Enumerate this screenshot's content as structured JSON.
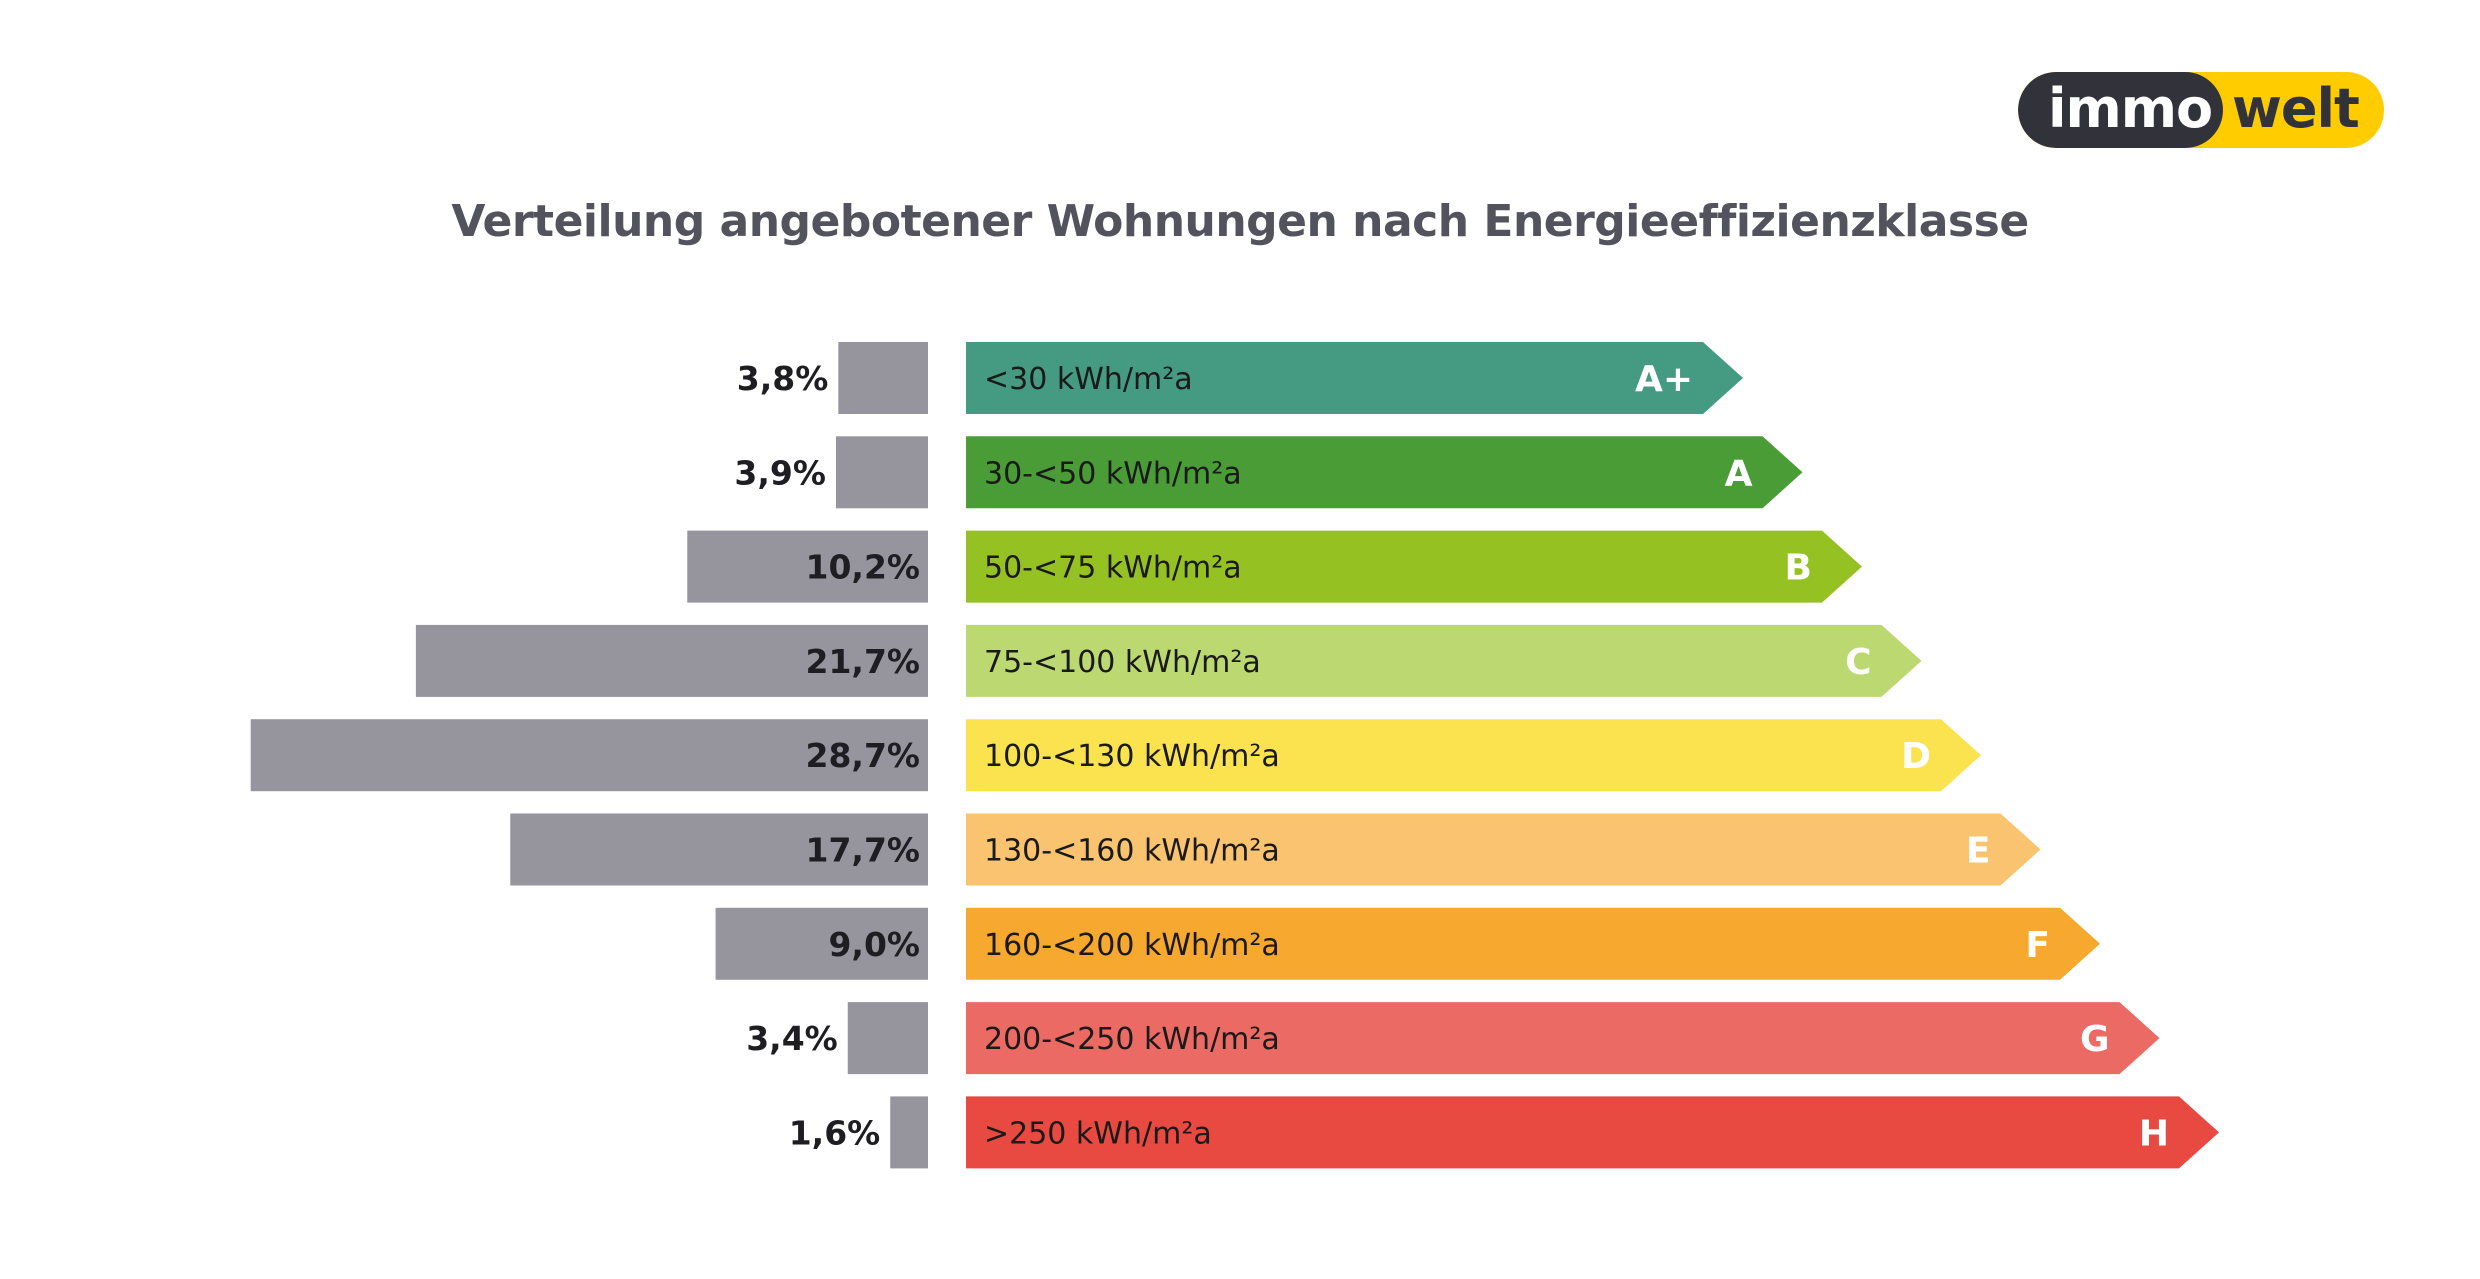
{
  "logo": {
    "part1": "immo",
    "part2": "welt",
    "dark_color": "#32333a",
    "accent_color": "#ffcc00"
  },
  "chart_data": {
    "type": "bar",
    "title": "Verteilung angebotener Wohnungen nach Energieeffizienzklasse",
    "xlabel": "",
    "ylabel": "",
    "unit": "%",
    "bar_color": "#96959e",
    "categories": [
      "A+",
      "A",
      "B",
      "C",
      "D",
      "E",
      "F",
      "G",
      "H"
    ],
    "ranges": [
      "<30 kWh/m²a",
      "30-<50 kWh/m²a",
      "50-<75 kWh/m²a",
      "75-<100 kWh/m²a",
      "100-<130 kWh/m²a",
      "130-<160 kWh/m²a",
      "160-<200 kWh/m²a",
      "200-<250 kWh/m²a",
      ">250 kWh/m²a"
    ],
    "values": [
      3.8,
      3.9,
      10.2,
      21.7,
      28.7,
      17.7,
      9.0,
      3.4,
      1.6
    ],
    "value_labels": [
      "3,8%",
      "3,9%",
      "10,2%",
      "21,7%",
      "28,7%",
      "17,7%",
      "9,0%",
      "3,4%",
      "1,6%"
    ],
    "class_colors": [
      "#459a82",
      "#4a9c36",
      "#95c123",
      "#bcd871",
      "#fbe34f",
      "#f9c36f",
      "#f6a82f",
      "#eb6a63",
      "#e84a42"
    ],
    "xlim": [
      0,
      30
    ],
    "grid": false,
    "legend": "none"
  }
}
